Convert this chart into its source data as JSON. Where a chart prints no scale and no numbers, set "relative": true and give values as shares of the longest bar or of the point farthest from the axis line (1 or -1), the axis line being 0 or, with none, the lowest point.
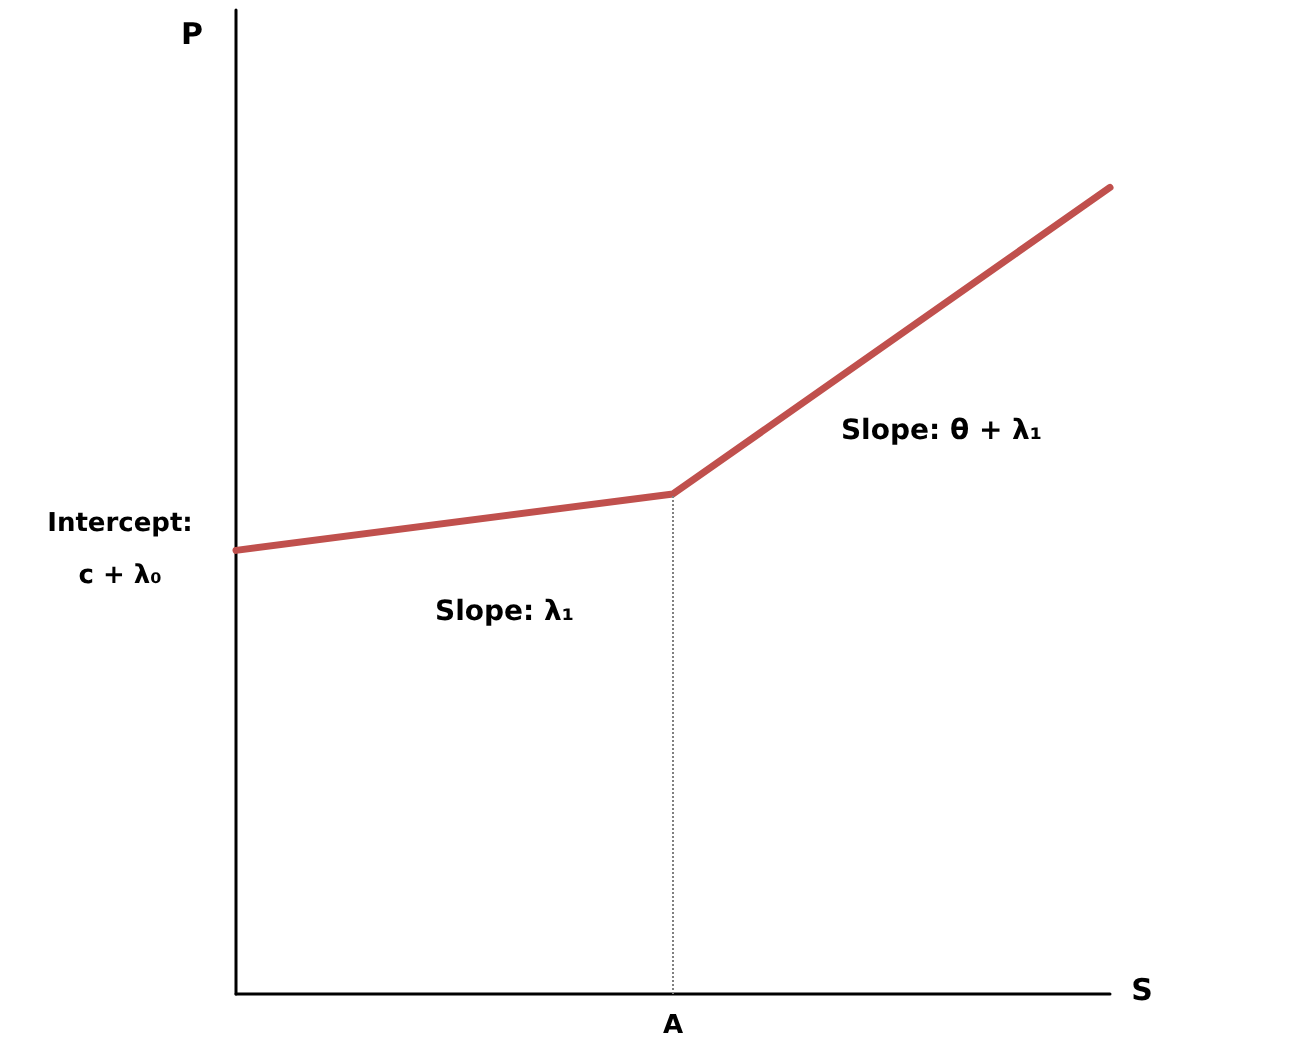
{
  "chart_data": {
    "type": "line",
    "relative": true,
    "xlabel": "S",
    "ylabel": "P",
    "categories": [
      null,
      null,
      null
    ],
    "series": [
      {
        "color": "#c0504d",
        "values": [
          0.55,
          0.62,
          1
        ]
      }
    ],
    "marker": "none",
    "annotations": [
      "Intercept: c + λ₀",
      "Slope: λ₁",
      "Slope: θ + λ₁",
      "A"
    ]
  }
}
